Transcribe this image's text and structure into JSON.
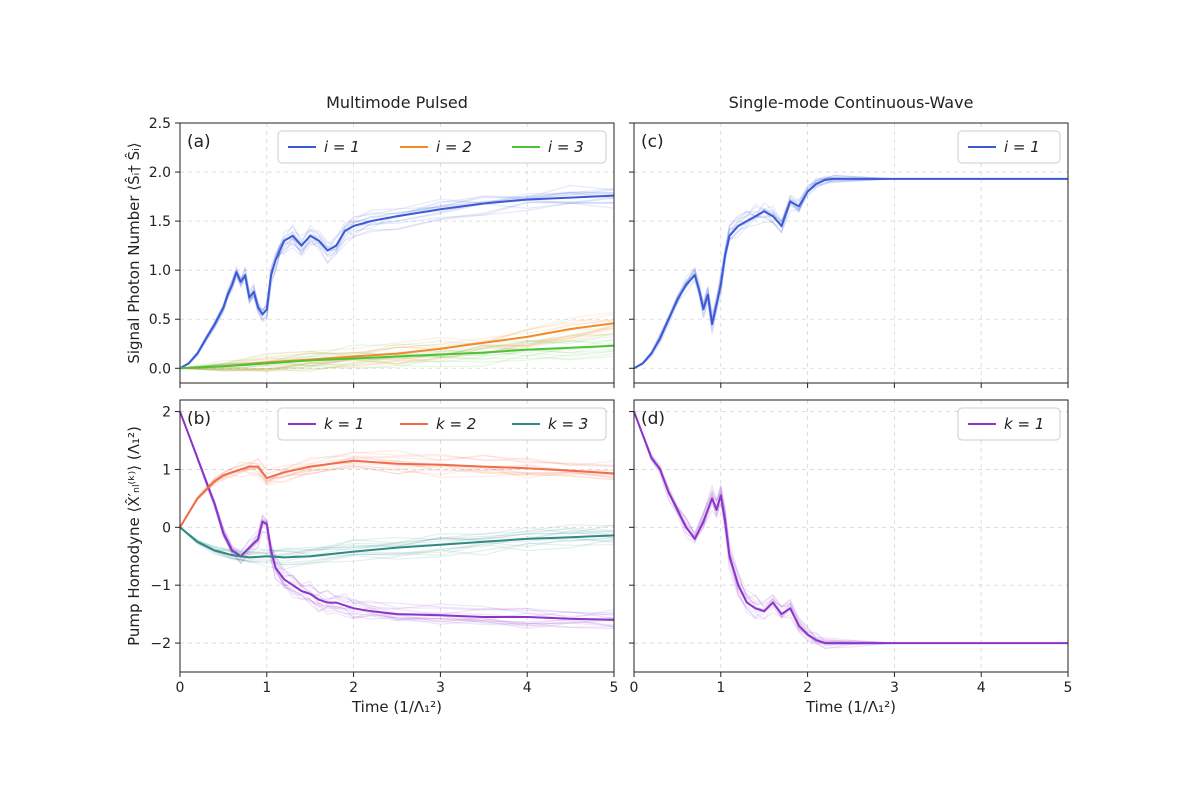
{
  "figure": {
    "left_title": "Multimode Pulsed",
    "right_title": "Single-mode Continuous-Wave"
  },
  "colors": {
    "blue": "#3b5bd6",
    "orange": "#f28a2a",
    "green": "#4dc236",
    "purple": "#8a34c9",
    "red": "#ef6d48",
    "teal": "#2f8a83"
  },
  "chart_data": [
    {
      "id": "a",
      "panel_label": "(a)",
      "type": "line",
      "title": "Multimode Pulsed",
      "ylabel": "Signal Photon Number ⟨Ŝᵢ† Ŝᵢ⟩",
      "xlabel": "",
      "xlim": [
        0,
        5
      ],
      "ylim": [
        -0.15,
        2.5
      ],
      "xticks": [
        "0",
        "1",
        "2",
        "3",
        "4",
        "5"
      ],
      "yticks": [
        "0.0",
        "0.5",
        "1.0",
        "1.5",
        "2.0",
        "2.5"
      ],
      "legend": [
        "i = 1",
        "i = 2",
        "i = 3"
      ],
      "series": [
        {
          "name": "i = 1",
          "color_key": "blue",
          "x": [
            0,
            0.1,
            0.2,
            0.3,
            0.4,
            0.5,
            0.55,
            0.6,
            0.65,
            0.7,
            0.75,
            0.8,
            0.85,
            0.9,
            0.95,
            1.0,
            1.05,
            1.1,
            1.15,
            1.2,
            1.3,
            1.4,
            1.5,
            1.6,
            1.7,
            1.8,
            1.9,
            2.0,
            2.2,
            2.5,
            3.0,
            3.5,
            4.0,
            4.5,
            5.0
          ],
          "y": [
            0,
            0.05,
            0.15,
            0.3,
            0.45,
            0.62,
            0.75,
            0.85,
            0.98,
            0.88,
            0.95,
            0.72,
            0.78,
            0.62,
            0.55,
            0.6,
            0.95,
            1.1,
            1.2,
            1.3,
            1.35,
            1.25,
            1.35,
            1.3,
            1.2,
            1.25,
            1.4,
            1.45,
            1.5,
            1.55,
            1.62,
            1.68,
            1.72,
            1.74,
            1.76
          ]
        },
        {
          "name": "i = 2",
          "color_key": "orange",
          "x": [
            0,
            0.5,
            1.0,
            1.5,
            2.0,
            2.5,
            3.0,
            3.5,
            4.0,
            4.5,
            5.0
          ],
          "y": [
            0,
            0.02,
            0.06,
            0.09,
            0.12,
            0.15,
            0.2,
            0.26,
            0.32,
            0.4,
            0.46
          ]
        },
        {
          "name": "i = 3",
          "color_key": "green",
          "x": [
            0,
            0.5,
            1.0,
            1.5,
            2.0,
            2.5,
            3.0,
            3.5,
            4.0,
            4.5,
            5.0
          ],
          "y": [
            0,
            0.02,
            0.05,
            0.08,
            0.1,
            0.12,
            0.14,
            0.16,
            0.19,
            0.21,
            0.23
          ]
        }
      ]
    },
    {
      "id": "c",
      "panel_label": "(c)",
      "type": "line",
      "title": "Single-mode Continuous-Wave",
      "ylabel": "",
      "xlabel": "",
      "xlim": [
        0,
        5
      ],
      "ylim": [
        -0.15,
        2.5
      ],
      "xticks": [
        "0",
        "1",
        "2",
        "3",
        "4",
        "5"
      ],
      "yticks": [],
      "legend": [
        "i = 1"
      ],
      "series": [
        {
          "name": "i = 1",
          "color_key": "blue",
          "x": [
            0,
            0.1,
            0.2,
            0.3,
            0.4,
            0.5,
            0.6,
            0.7,
            0.75,
            0.8,
            0.85,
            0.9,
            0.95,
            1.0,
            1.05,
            1.1,
            1.2,
            1.3,
            1.4,
            1.5,
            1.6,
            1.7,
            1.8,
            1.9,
            2.0,
            2.1,
            2.2,
            2.3,
            3.0,
            4.0,
            5.0
          ],
          "y": [
            0,
            0.05,
            0.15,
            0.3,
            0.5,
            0.7,
            0.85,
            0.95,
            0.8,
            0.6,
            0.75,
            0.45,
            0.65,
            0.85,
            1.15,
            1.35,
            1.45,
            1.5,
            1.55,
            1.6,
            1.55,
            1.45,
            1.7,
            1.65,
            1.8,
            1.88,
            1.92,
            1.93,
            1.93,
            1.93,
            1.93
          ]
        }
      ]
    },
    {
      "id": "b",
      "panel_label": "(b)",
      "type": "line",
      "title": "",
      "ylabel": "Pump Homodyne ⟨X̂′ₙₗ⁽ᵏ⁾⟩ (Λ₁²)",
      "xlabel": "Time (1/Λ₁²)",
      "xlim": [
        0,
        5
      ],
      "ylim": [
        -2.5,
        2.2
      ],
      "xticks": [
        "0",
        "1",
        "2",
        "3",
        "4",
        "5"
      ],
      "yticks": [
        "−2",
        "−1",
        "0",
        "1",
        "2"
      ],
      "legend": [
        "k = 1",
        "k = 2",
        "k = 3"
      ],
      "series": [
        {
          "name": "k = 1",
          "color_key": "purple",
          "x": [
            0,
            0.1,
            0.2,
            0.3,
            0.4,
            0.5,
            0.6,
            0.7,
            0.8,
            0.9,
            0.95,
            1.0,
            1.05,
            1.1,
            1.2,
            1.3,
            1.4,
            1.5,
            1.6,
            1.7,
            1.8,
            1.9,
            2.0,
            2.2,
            2.5,
            3.0,
            3.5,
            4.0,
            4.5,
            5.0
          ],
          "y": [
            2.0,
            1.6,
            1.2,
            0.8,
            0.4,
            -0.1,
            -0.4,
            -0.5,
            -0.35,
            -0.2,
            0.1,
            0.05,
            -0.4,
            -0.7,
            -0.9,
            -1.0,
            -1.1,
            -1.15,
            -1.25,
            -1.3,
            -1.3,
            -1.35,
            -1.4,
            -1.45,
            -1.5,
            -1.52,
            -1.55,
            -1.55,
            -1.58,
            -1.6
          ]
        },
        {
          "name": "k = 2",
          "color_key": "red",
          "x": [
            0,
            0.1,
            0.2,
            0.3,
            0.4,
            0.5,
            0.6,
            0.7,
            0.8,
            0.9,
            1.0,
            1.2,
            1.5,
            2.0,
            2.5,
            3.0,
            3.5,
            4.0,
            4.5,
            5.0
          ],
          "y": [
            0,
            0.25,
            0.5,
            0.65,
            0.8,
            0.9,
            0.95,
            1.0,
            1.05,
            1.05,
            0.85,
            0.95,
            1.05,
            1.15,
            1.1,
            1.08,
            1.05,
            1.02,
            0.98,
            0.93
          ]
        },
        {
          "name": "k = 3",
          "color_key": "teal",
          "x": [
            0,
            0.2,
            0.4,
            0.6,
            0.8,
            1.0,
            1.2,
            1.5,
            2.0,
            2.5,
            3.0,
            3.5,
            4.0,
            4.5,
            5.0
          ],
          "y": [
            0,
            -0.25,
            -0.4,
            -0.48,
            -0.52,
            -0.5,
            -0.52,
            -0.5,
            -0.42,
            -0.35,
            -0.3,
            -0.25,
            -0.2,
            -0.17,
            -0.14
          ]
        }
      ]
    },
    {
      "id": "d",
      "panel_label": "(d)",
      "type": "line",
      "title": "",
      "ylabel": "",
      "xlabel": "Time (1/Λ₁²)",
      "xlim": [
        0,
        5
      ],
      "ylim": [
        -2.5,
        2.2
      ],
      "xticks": [
        "0",
        "1",
        "2",
        "3",
        "4",
        "5"
      ],
      "yticks": [],
      "legend": [
        "k = 1"
      ],
      "series": [
        {
          "name": "k = 1",
          "color_key": "purple",
          "x": [
            0,
            0.1,
            0.2,
            0.3,
            0.4,
            0.5,
            0.6,
            0.7,
            0.8,
            0.9,
            0.95,
            1.0,
            1.05,
            1.1,
            1.2,
            1.3,
            1.4,
            1.5,
            1.6,
            1.7,
            1.8,
            1.9,
            2.0,
            2.1,
            2.2,
            2.5,
            3.0,
            4.0,
            5.0
          ],
          "y": [
            2.0,
            1.6,
            1.2,
            1.0,
            0.6,
            0.3,
            0.0,
            -0.2,
            0.1,
            0.5,
            0.3,
            0.55,
            0.1,
            -0.5,
            -1.0,
            -1.3,
            -1.4,
            -1.45,
            -1.3,
            -1.5,
            -1.4,
            -1.7,
            -1.85,
            -1.95,
            -2.0,
            -2.0,
            -2.0,
            -2.0,
            -2.0
          ]
        }
      ]
    }
  ]
}
